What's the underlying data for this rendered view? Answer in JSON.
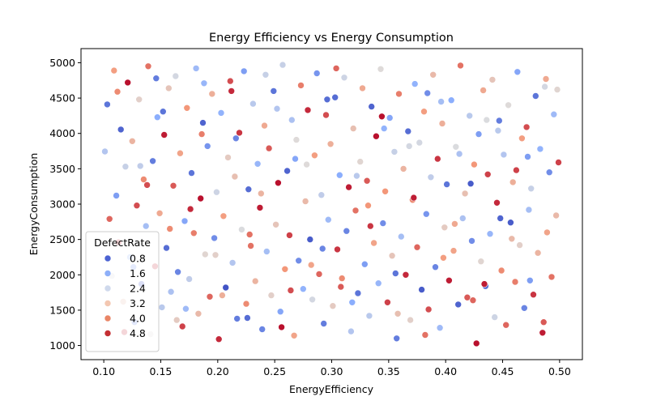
{
  "chart_data": {
    "type": "scatter",
    "title": "Energy Efficiency vs Energy Consumption",
    "xlabel": "EnergyEfficiency",
    "ylabel": "EnergyConsumption",
    "xlim": [
      0.08,
      0.52
    ],
    "ylim": [
      800,
      5200
    ],
    "xticks": [
      0.1,
      0.15,
      0.2,
      0.25,
      0.3,
      0.35,
      0.4,
      0.45,
      0.5
    ],
    "xtick_labels": [
      "0.10",
      "0.15",
      "0.20",
      "0.25",
      "0.30",
      "0.35",
      "0.40",
      "0.45",
      "0.50"
    ],
    "yticks": [
      1000,
      1500,
      2000,
      2500,
      3000,
      3500,
      4000,
      4500,
      5000
    ],
    "ytick_labels": [
      "1000",
      "1500",
      "2000",
      "2500",
      "3000",
      "3500",
      "4000",
      "4500",
      "5000"
    ],
    "grid": false,
    "colormap": "coolwarm",
    "hue_range": [
      0.1,
      5.0
    ],
    "legend": {
      "title": "DefectRate",
      "placement": "lower-left",
      "entries": [
        {
          "label": "0.8",
          "value": 0.8,
          "color": "#4b62d2"
        },
        {
          "label": "1.6",
          "value": 1.6,
          "color": "#8eaff8"
        },
        {
          "label": "2.4",
          "value": 2.4,
          "color": "#cfd9ec"
        },
        {
          "label": "3.2",
          "value": 3.2,
          "color": "#f3c7b1"
        },
        {
          "label": "4.0",
          "value": 4.0,
          "color": "#e98566"
        },
        {
          "label": "4.8",
          "value": 4.8,
          "color": "#c42f33"
        }
      ]
    },
    "points": [
      [
        0.101,
        3745,
        1.9
      ],
      [
        0.103,
        4410,
        0.6
      ],
      [
        0.105,
        2790,
        4.2
      ],
      [
        0.107,
        1985,
        2.5
      ],
      [
        0.109,
        4890,
        3.7
      ],
      [
        0.111,
        3120,
        1.1
      ],
      [
        0.113,
        2460,
        4.7
      ],
      [
        0.115,
        4055,
        0.4
      ],
      [
        0.117,
        1620,
        3.1
      ],
      [
        0.119,
        3530,
        2.2
      ],
      [
        0.121,
        4720,
        4.9
      ],
      [
        0.123,
        2250,
        1.5
      ],
      [
        0.125,
        3890,
        3.3
      ],
      [
        0.127,
        1330,
        0.9
      ],
      [
        0.129,
        2980,
        4.4
      ],
      [
        0.131,
        4480,
        2.8
      ],
      [
        0.133,
        1870,
        0.3
      ],
      [
        0.135,
        3350,
        3.9
      ],
      [
        0.137,
        2690,
        1.7
      ],
      [
        0.139,
        4950,
        4.1
      ],
      [
        0.141,
        1160,
        2.6
      ],
      [
        0.143,
        3610,
        0.7
      ],
      [
        0.145,
        2120,
        4.6
      ],
      [
        0.147,
        4230,
        1.3
      ],
      [
        0.149,
        2870,
        3.5
      ],
      [
        0.151,
        1540,
        2.0
      ],
      [
        0.153,
        3980,
        4.8
      ],
      [
        0.155,
        2380,
        0.5
      ],
      [
        0.157,
        4640,
        3.0
      ],
      [
        0.159,
        1760,
        1.8
      ],
      [
        0.161,
        3260,
        4.3
      ],
      [
        0.163,
        4810,
        2.4
      ],
      [
        0.165,
        2040,
        0.8
      ],
      [
        0.167,
        3720,
        3.6
      ],
      [
        0.169,
        1270,
        4.5
      ],
      [
        0.171,
        2760,
        1.2
      ],
      [
        0.173,
        4360,
        3.8
      ],
      [
        0.175,
        1940,
        2.1
      ],
      [
        0.177,
        3440,
        0.6
      ],
      [
        0.179,
        2590,
        4.0
      ],
      [
        0.181,
        4920,
        1.6
      ],
      [
        0.183,
        1450,
        3.2
      ],
      [
        0.185,
        3080,
        4.9
      ],
      [
        0.187,
        4150,
        0.4
      ],
      [
        0.189,
        2290,
        2.7
      ],
      [
        0.191,
        3820,
        1.0
      ],
      [
        0.193,
        1690,
        4.2
      ],
      [
        0.195,
        4560,
        3.4
      ],
      [
        0.197,
        2520,
        0.9
      ],
      [
        0.199,
        3170,
        2.3
      ],
      [
        0.201,
        1090,
        4.7
      ],
      [
        0.203,
        4290,
        1.4
      ],
      [
        0.205,
        2830,
        3.7
      ],
      [
        0.207,
        1820,
        0.2
      ],
      [
        0.209,
        3660,
        2.9
      ],
      [
        0.211,
        4740,
        4.4
      ],
      [
        0.213,
        2170,
        1.9
      ],
      [
        0.215,
        3390,
        3.1
      ],
      [
        0.217,
        1380,
        0.7
      ],
      [
        0.219,
        4010,
        4.6
      ],
      [
        0.221,
        2640,
        2.5
      ],
      [
        0.223,
        4880,
        1.1
      ],
      [
        0.225,
        1590,
        3.9
      ],
      [
        0.227,
        3210,
        0.5
      ],
      [
        0.229,
        2410,
        4.1
      ],
      [
        0.231,
        4420,
        2.0
      ],
      [
        0.233,
        1910,
        3.3
      ],
      [
        0.235,
        3570,
        1.5
      ],
      [
        0.237,
        2950,
        4.8
      ],
      [
        0.239,
        1230,
        0.8
      ],
      [
        0.241,
        4110,
        3.5
      ],
      [
        0.243,
        2330,
        1.7
      ],
      [
        0.245,
        3790,
        4.3
      ],
      [
        0.247,
        1710,
        2.8
      ],
      [
        0.249,
        4600,
        0.6
      ],
      [
        0.251,
        2710,
        3.0
      ],
      [
        0.253,
        3300,
        4.9
      ],
      [
        0.255,
        1480,
        1.2
      ],
      [
        0.257,
        4970,
        2.2
      ],
      [
        0.259,
        2080,
        3.8
      ],
      [
        0.261,
        3470,
        0.4
      ],
      [
        0.263,
        2560,
        4.5
      ],
      [
        0.265,
        4190,
        1.8
      ],
      [
        0.267,
        1140,
        3.6
      ],
      [
        0.269,
        3910,
        2.6
      ],
      [
        0.271,
        2200,
        0.9
      ],
      [
        0.273,
        4680,
        4.0
      ],
      [
        0.275,
        1800,
        1.4
      ],
      [
        0.277,
        3040,
        3.2
      ],
      [
        0.279,
        4330,
        4.7
      ],
      [
        0.281,
        2500,
        0.3
      ],
      [
        0.283,
        1650,
        2.4
      ],
      [
        0.285,
        3690,
        3.7
      ],
      [
        0.287,
        4850,
        1.0
      ],
      [
        0.289,
        2010,
        4.2
      ],
      [
        0.291,
        3130,
        2.1
      ],
      [
        0.293,
        1310,
        0.7
      ],
      [
        0.295,
        4260,
        4.4
      ],
      [
        0.297,
        2780,
        1.6
      ],
      [
        0.299,
        3850,
        3.4
      ],
      [
        0.301,
        1560,
        2.9
      ],
      [
        0.303,
        4510,
        0.5
      ],
      [
        0.305,
        2360,
        4.6
      ],
      [
        0.307,
        3410,
        1.3
      ],
      [
        0.309,
        1950,
        3.9
      ],
      [
        0.311,
        4790,
        2.3
      ],
      [
        0.313,
        2620,
        0.8
      ],
      [
        0.315,
        3240,
        4.8
      ],
      [
        0.317,
        1200,
        1.9
      ],
      [
        0.319,
        4070,
        3.1
      ],
      [
        0.321,
        2910,
        4.1
      ],
      [
        0.323,
        1740,
        0.6
      ],
      [
        0.325,
        3600,
        2.7
      ],
      [
        0.327,
        4640,
        3.5
      ],
      [
        0.329,
        2150,
        1.1
      ],
      [
        0.331,
        3330,
        4.3
      ],
      [
        0.333,
        1420,
        2.0
      ],
      [
        0.335,
        4380,
        0.4
      ],
      [
        0.337,
        2450,
        3.6
      ],
      [
        0.339,
        3960,
        4.9
      ],
      [
        0.341,
        1880,
        1.5
      ],
      [
        0.343,
        4910,
        2.6
      ],
      [
        0.345,
        2730,
        0.9
      ],
      [
        0.347,
        3180,
        3.8
      ],
      [
        0.349,
        1610,
        4.5
      ],
      [
        0.351,
        4220,
        1.2
      ],
      [
        0.353,
        2270,
        3.0
      ],
      [
        0.355,
        3740,
        2.2
      ],
      [
        0.357,
        1100,
        0.7
      ],
      [
        0.359,
        4560,
        4.0
      ],
      [
        0.361,
        2540,
        1.7
      ],
      [
        0.363,
        3500,
        3.3
      ],
      [
        0.365,
        2000,
        4.7
      ],
      [
        0.367,
        4030,
        0.5
      ],
      [
        0.369,
        1360,
        2.8
      ],
      [
        0.371,
        3060,
        3.9
      ],
      [
        0.373,
        4700,
        1.4
      ],
      [
        0.375,
        2390,
        4.2
      ],
      [
        0.377,
        3870,
        2.4
      ],
      [
        0.379,
        1790,
        0.3
      ],
      [
        0.381,
        4310,
        3.7
      ],
      [
        0.383,
        2860,
        1.0
      ],
      [
        0.385,
        1510,
        4.4
      ],
      [
        0.387,
        3380,
        2.1
      ],
      [
        0.389,
        4830,
        3.2
      ],
      [
        0.391,
        2110,
        0.8
      ],
      [
        0.393,
        3640,
        4.6
      ],
      [
        0.395,
        1250,
        1.6
      ],
      [
        0.397,
        4140,
        3.4
      ],
      [
        0.399,
        2670,
        2.9
      ],
      [
        0.401,
        3280,
        0.6
      ],
      [
        0.403,
        1920,
        4.8
      ],
      [
        0.405,
        4470,
        1.3
      ],
      [
        0.407,
        2340,
        3.6
      ],
      [
        0.409,
        3810,
        2.5
      ],
      [
        0.411,
        1580,
        0.4
      ],
      [
        0.413,
        4960,
        4.1
      ],
      [
        0.415,
        2800,
        1.8
      ],
      [
        0.417,
        3150,
        3.1
      ],
      [
        0.419,
        1680,
        4.3
      ],
      [
        0.421,
        4250,
        2.0
      ],
      [
        0.423,
        2480,
        0.9
      ],
      [
        0.425,
        3560,
        3.8
      ],
      [
        0.427,
        1030,
        4.9
      ],
      [
        0.429,
        3990,
        1.1
      ],
      [
        0.431,
        2190,
        2.7
      ],
      [
        0.433,
        4610,
        3.5
      ],
      [
        0.435,
        1840,
        0.5
      ],
      [
        0.437,
        3420,
        4.5
      ],
      [
        0.439,
        2580,
        1.5
      ],
      [
        0.441,
        4760,
        3.0
      ],
      [
        0.443,
        1400,
        2.3
      ],
      [
        0.445,
        3020,
        4.7
      ],
      [
        0.447,
        4180,
        0.7
      ],
      [
        0.449,
        2060,
        3.9
      ],
      [
        0.451,
        3700,
        1.9
      ],
      [
        0.453,
        1290,
        4.2
      ],
      [
        0.455,
        4400,
        2.6
      ],
      [
        0.457,
        2740,
        0.3
      ],
      [
        0.459,
        3310,
        3.4
      ],
      [
        0.461,
        1900,
        4.0
      ],
      [
        0.463,
        4870,
        1.2
      ],
      [
        0.465,
        2420,
        2.8
      ],
      [
        0.467,
        3930,
        3.7
      ],
      [
        0.469,
        1530,
        0.8
      ],
      [
        0.471,
        4090,
        4.4
      ],
      [
        0.473,
        2920,
        1.7
      ],
      [
        0.475,
        3220,
        2.2
      ],
      [
        0.477,
        1720,
        4.6
      ],
      [
        0.479,
        4530,
        0.6
      ],
      [
        0.481,
        2310,
        3.3
      ],
      [
        0.483,
        3780,
        1.4
      ],
      [
        0.485,
        1180,
        4.8
      ],
      [
        0.487,
        4660,
        2.4
      ],
      [
        0.489,
        2600,
        3.6
      ],
      [
        0.491,
        3450,
        0.9
      ],
      [
        0.493,
        1970,
        4.1
      ],
      [
        0.495,
        4270,
        1.6
      ],
      [
        0.497,
        2840,
        3.2
      ],
      [
        0.499,
        3590,
        4.5
      ],
      [
        0.112,
        4590,
        3.9
      ],
      [
        0.126,
        2110,
        1.0
      ],
      [
        0.138,
        3270,
        4.4
      ],
      [
        0.152,
        4310,
        0.6
      ],
      [
        0.164,
        1360,
        2.9
      ],
      [
        0.176,
        2930,
        4.7
      ],
      [
        0.188,
        4710,
        1.5
      ],
      [
        0.204,
        1710,
        3.4
      ],
      [
        0.216,
        3930,
        0.8
      ],
      [
        0.228,
        2570,
        4.1
      ],
      [
        0.242,
        4830,
        2.2
      ],
      [
        0.256,
        1260,
        4.9
      ],
      [
        0.268,
        3640,
        1.2
      ],
      [
        0.282,
        2140,
        3.6
      ],
      [
        0.296,
        4480,
        0.5
      ],
      [
        0.308,
        1830,
        4.3
      ],
      [
        0.322,
        3400,
        2.0
      ],
      [
        0.334,
        2690,
        4.6
      ],
      [
        0.346,
        4070,
        1.4
      ],
      [
        0.358,
        1450,
        3.1
      ],
      [
        0.372,
        3090,
        4.8
      ],
      [
        0.384,
        4570,
        0.9
      ],
      [
        0.398,
        2240,
        3.7
      ],
      [
        0.412,
        3710,
        1.8
      ],
      [
        0.424,
        1640,
        4.2
      ],
      [
        0.436,
        4190,
        2.5
      ],
      [
        0.448,
        2800,
        0.4
      ],
      [
        0.462,
        3480,
        4.5
      ],
      [
        0.474,
        1920,
        1.1
      ],
      [
        0.488,
        4770,
        3.5
      ],
      [
        0.118,
        1190,
        4.6
      ],
      [
        0.132,
        3540,
        2.1
      ],
      [
        0.146,
        4780,
        0.7
      ],
      [
        0.158,
        2650,
        3.9
      ],
      [
        0.172,
        1520,
        1.6
      ],
      [
        0.186,
        3990,
        4.0
      ],
      [
        0.198,
        2280,
        2.8
      ],
      [
        0.212,
        4600,
        4.7
      ],
      [
        0.226,
        1390,
        0.5
      ],
      [
        0.238,
        3150,
        3.3
      ],
      [
        0.252,
        4350,
        1.9
      ],
      [
        0.264,
        1780,
        4.4
      ],
      [
        0.278,
        3560,
        2.6
      ],
      [
        0.292,
        2370,
        0.8
      ],
      [
        0.304,
        4920,
        4.2
      ],
      [
        0.318,
        1610,
        1.3
      ],
      [
        0.332,
        2980,
        3.8
      ],
      [
        0.344,
        4240,
        4.9
      ],
      [
        0.356,
        2020,
        0.6
      ],
      [
        0.368,
        3820,
        2.4
      ],
      [
        0.382,
        1150,
        4.1
      ],
      [
        0.396,
        4450,
        1.7
      ],
      [
        0.408,
        2720,
        3.5
      ],
      [
        0.422,
        3290,
        0.3
      ],
      [
        0.434,
        1870,
        4.8
      ],
      [
        0.446,
        4040,
        2.0
      ],
      [
        0.458,
        2510,
        3.2
      ],
      [
        0.472,
        3670,
        1.1
      ],
      [
        0.486,
        1330,
        4.3
      ],
      [
        0.498,
        4620,
        2.7
      ]
    ]
  }
}
